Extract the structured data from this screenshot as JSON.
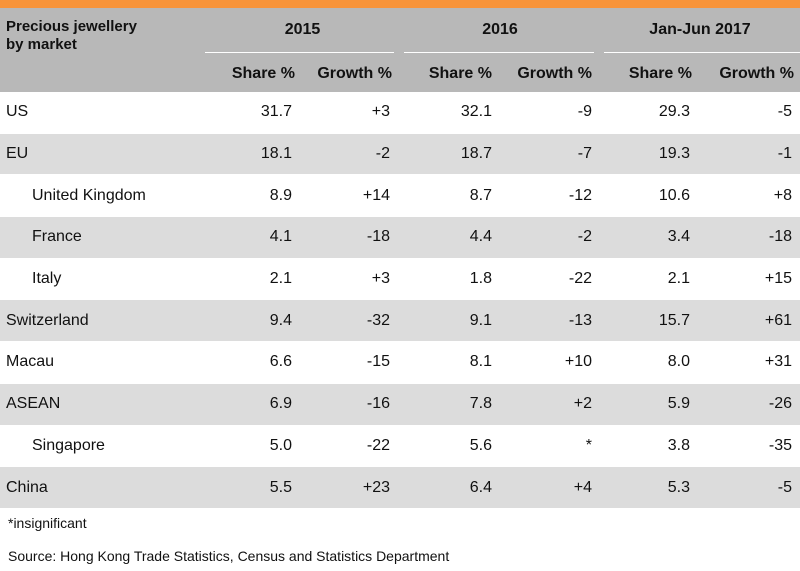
{
  "table": {
    "title": "Precious jewellery\nby market",
    "years": [
      "2015",
      "2016",
      "Jan-Jun 2017"
    ],
    "subheaders": [
      "Share %",
      "Growth %",
      "Share %",
      "Growth %",
      "Share %",
      "Growth %"
    ],
    "rows": [
      {
        "market": "US",
        "indent": false,
        "shade": false,
        "values": [
          "31.7",
          "+3",
          "32.1",
          "-9",
          "29.3",
          "-5"
        ]
      },
      {
        "market": "EU",
        "indent": false,
        "shade": true,
        "values": [
          "18.1",
          "-2",
          "18.7",
          "-7",
          "19.3",
          "-1"
        ]
      },
      {
        "market": "United Kingdom",
        "indent": true,
        "shade": false,
        "values": [
          "8.9",
          "+14",
          "8.7",
          "-12",
          "10.6",
          "+8"
        ]
      },
      {
        "market": "France",
        "indent": true,
        "shade": true,
        "values": [
          "4.1",
          "-18",
          "4.4",
          "-2",
          "3.4",
          "-18"
        ]
      },
      {
        "market": "Italy",
        "indent": true,
        "shade": false,
        "values": [
          "2.1",
          "+3",
          "1.8",
          "-22",
          "2.1",
          "+15"
        ]
      },
      {
        "market": "Switzerland",
        "indent": false,
        "shade": true,
        "values": [
          "9.4",
          "-32",
          "9.1",
          "-13",
          "15.7",
          "+61"
        ]
      },
      {
        "market": "Macau",
        "indent": false,
        "shade": false,
        "values": [
          "6.6",
          "-15",
          "8.1",
          "+10",
          "8.0",
          "+31"
        ]
      },
      {
        "market": "ASEAN",
        "indent": false,
        "shade": true,
        "values": [
          "6.9",
          "-16",
          "7.8",
          "+2",
          "5.9",
          "-26"
        ]
      },
      {
        "market": "Singapore",
        "indent": true,
        "shade": false,
        "values": [
          "5.0",
          "-22",
          "5.6",
          "*",
          "3.8",
          "-35"
        ]
      },
      {
        "market": "China",
        "indent": false,
        "shade": true,
        "values": [
          "5.5",
          "+23",
          "6.4",
          "+4",
          "5.3",
          "-5"
        ]
      }
    ]
  },
  "footnote": "*insignificant",
  "source": "Source: Hong Kong Trade Statistics, Census and Statistics Department",
  "colors": {
    "accent": "#f7943a",
    "header_bg": "#b8b8b8",
    "row_shade": "#dcdcdc"
  }
}
